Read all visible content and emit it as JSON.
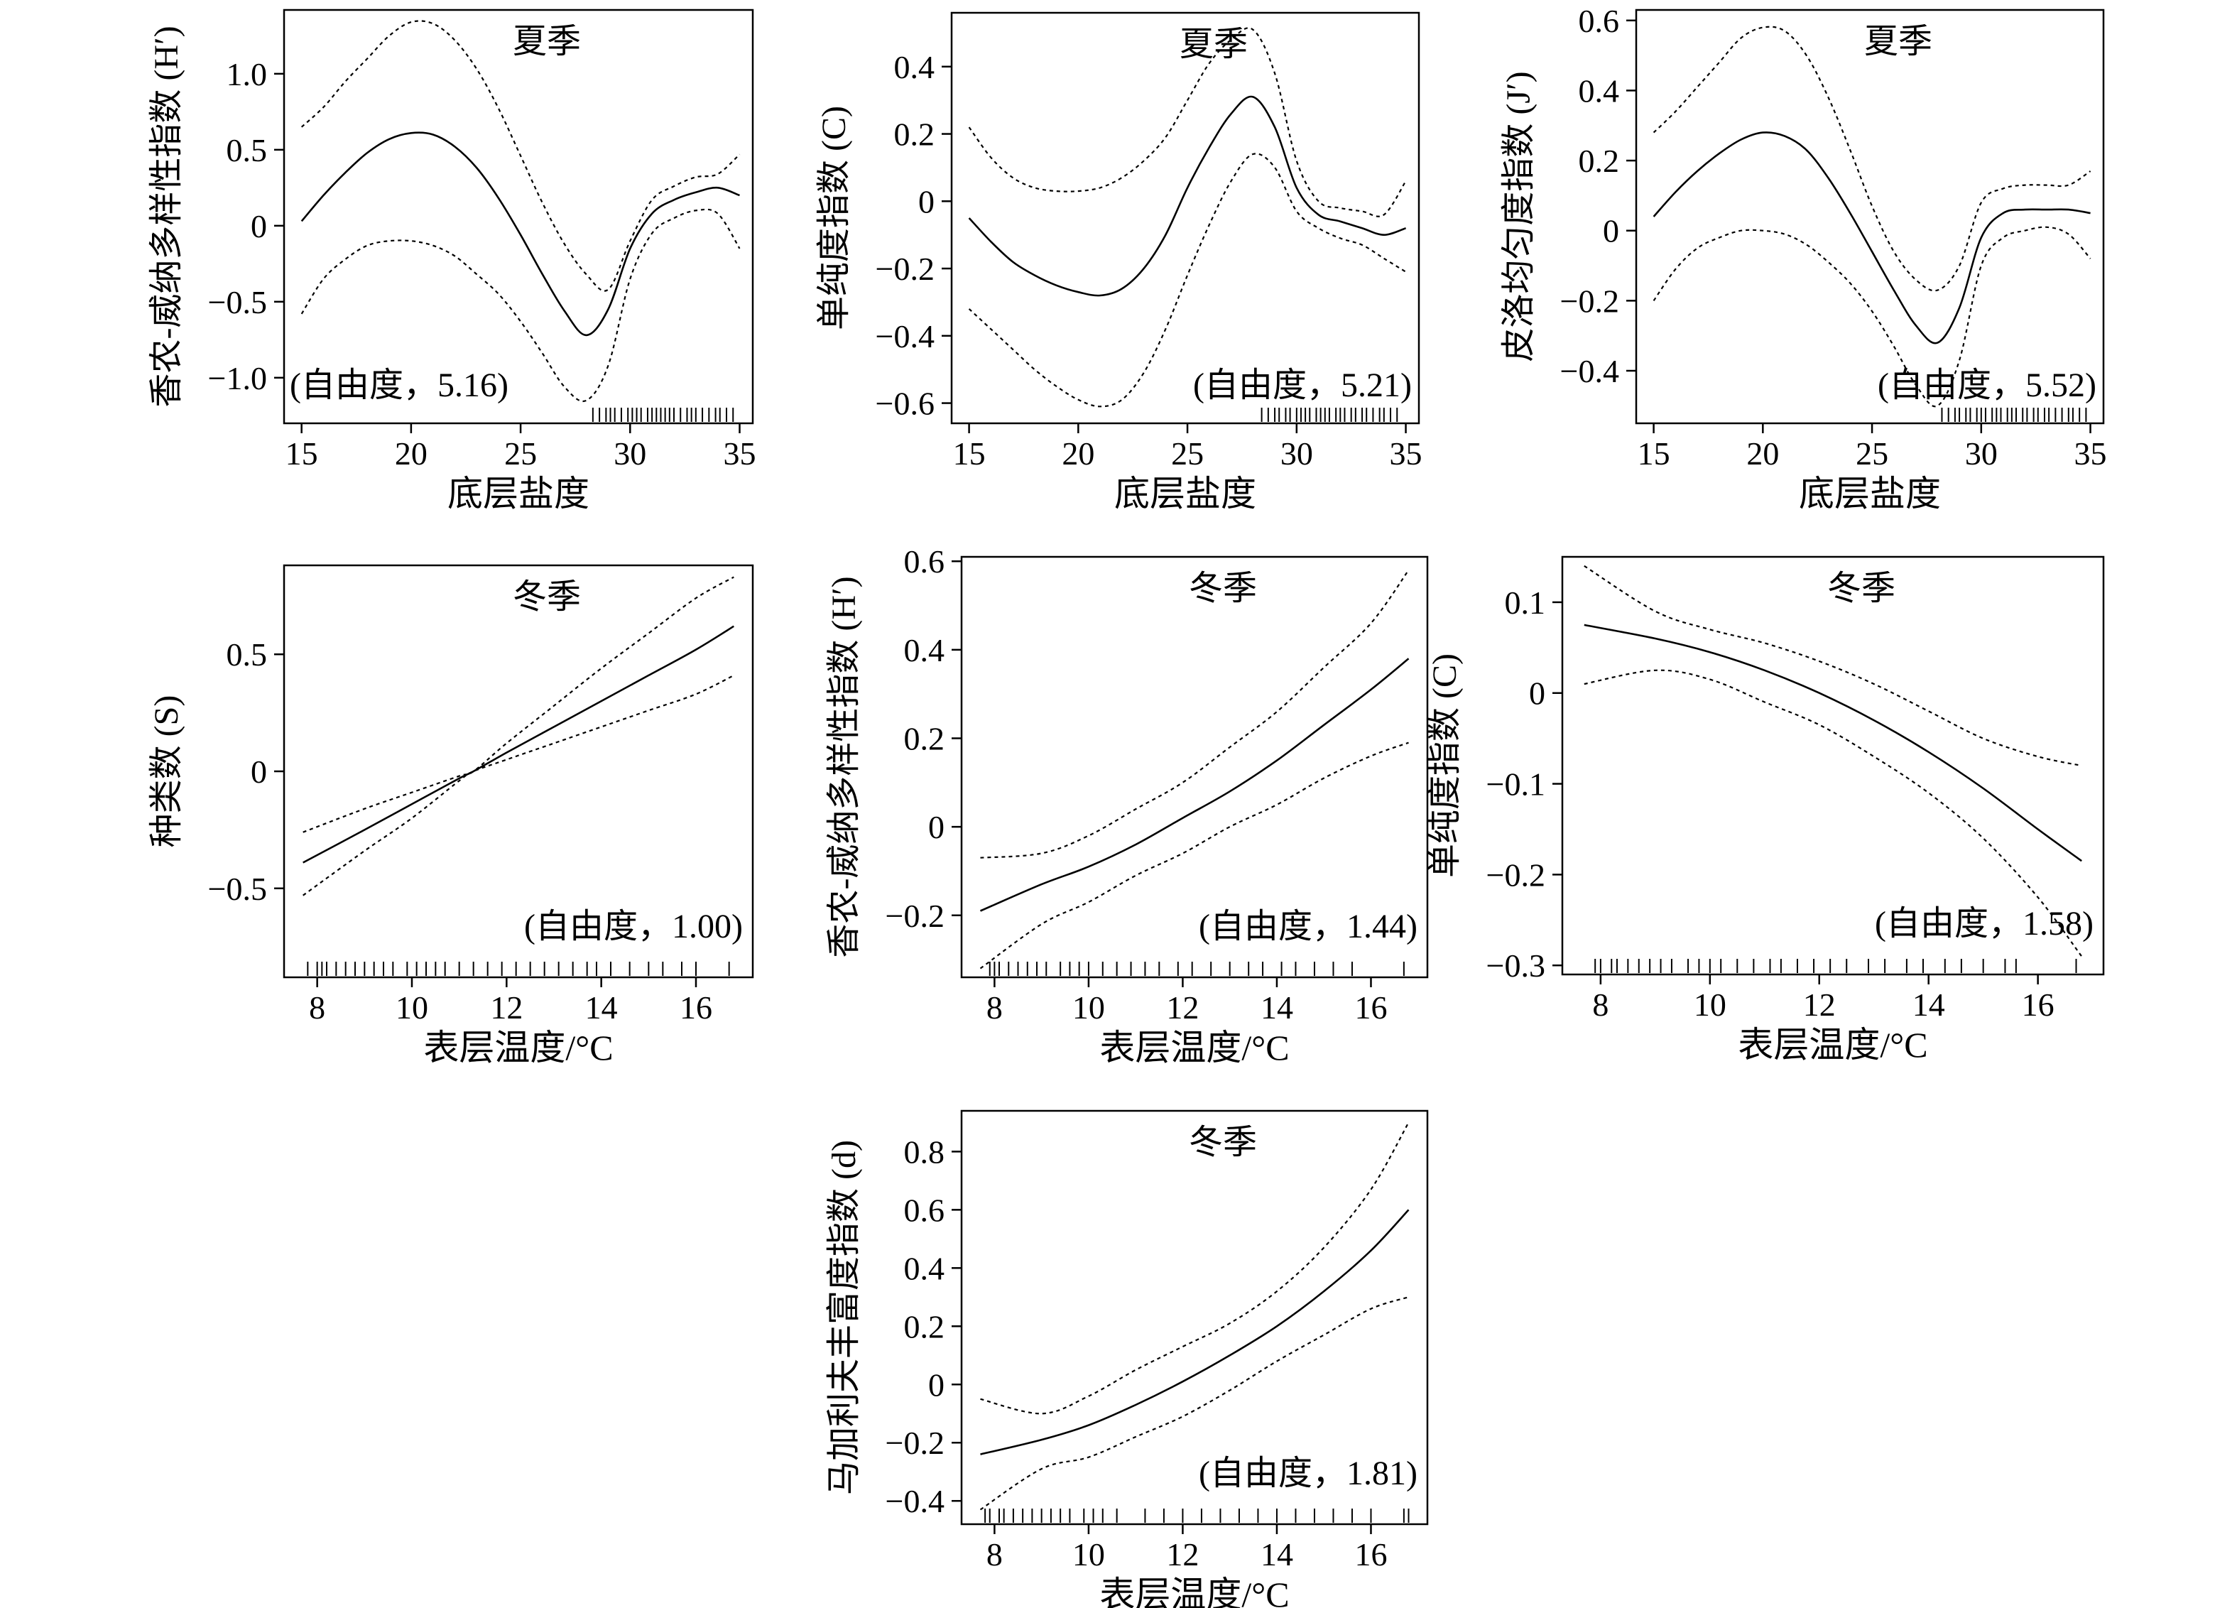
{
  "chart_data": [
    {
      "type": "line",
      "season": "夏季",
      "df_label": "(自由度，5.16)",
      "xlabel": "底层盐度",
      "ylabel": "香农-威纳多样性指数 (H′)",
      "xlim": [
        14.2,
        35.6
      ],
      "ylim": [
        -1.3,
        1.42
      ],
      "xticks": [
        15,
        20,
        25,
        30,
        35
      ],
      "yticks": [
        -1.0,
        -0.5,
        0,
        0.5,
        1.0
      ],
      "ytick_labels": [
        "−1.0",
        "−0.5",
        "0",
        "0.5",
        "1.0"
      ],
      "x": [
        15,
        16,
        17,
        18,
        19,
        20,
        21,
        22,
        23,
        24,
        25,
        26,
        27,
        28,
        29,
        30,
        31,
        32,
        33,
        34,
        35
      ],
      "fit": [
        0.03,
        0.2,
        0.35,
        0.48,
        0.57,
        0.61,
        0.6,
        0.52,
        0.38,
        0.18,
        -0.06,
        -0.32,
        -0.56,
        -0.72,
        -0.55,
        -0.15,
        0.08,
        0.17,
        0.22,
        0.25,
        0.2
      ],
      "upper": [
        0.65,
        0.78,
        0.95,
        1.1,
        1.25,
        1.34,
        1.33,
        1.22,
        1.03,
        0.77,
        0.46,
        0.15,
        -0.12,
        -0.32,
        -0.42,
        -0.1,
        0.17,
        0.26,
        0.32,
        0.34,
        0.47
      ],
      "lower": [
        -0.58,
        -0.35,
        -0.22,
        -0.13,
        -0.1,
        -0.1,
        -0.13,
        -0.2,
        -0.32,
        -0.45,
        -0.63,
        -0.84,
        -1.06,
        -1.15,
        -0.92,
        -0.35,
        -0.05,
        0.05,
        0.1,
        0.08,
        -0.15
      ],
      "rug": [
        28.3,
        28.6,
        28.9,
        29.1,
        29.3,
        29.6,
        29.9,
        30.1,
        30.3,
        30.5,
        30.8,
        31.0,
        31.2,
        31.4,
        31.6,
        31.8,
        32.0,
        32.3,
        32.6,
        32.8,
        33.0,
        33.3,
        33.6,
        33.9,
        34.1,
        34.4,
        34.7
      ]
    },
    {
      "type": "line",
      "season": "夏季",
      "df_label": "(自由度，5.21)",
      "xlabel": "底层盐度",
      "ylabel": "单纯度指数 (C)",
      "xlim": [
        14.2,
        35.6
      ],
      "ylim": [
        -0.66,
        0.56
      ],
      "xticks": [
        15,
        20,
        25,
        30,
        35
      ],
      "yticks": [
        -0.6,
        -0.4,
        -0.2,
        0,
        0.2,
        0.4
      ],
      "ytick_labels": [
        "−0.6",
        "−0.4",
        "−0.2",
        "0",
        "0.2",
        "0.4"
      ],
      "x": [
        15,
        16,
        17,
        18,
        19,
        20,
        21,
        22,
        23,
        24,
        25,
        26,
        27,
        28,
        29,
        30,
        31,
        32,
        33,
        34,
        35
      ],
      "fit": [
        -0.05,
        -0.12,
        -0.18,
        -0.22,
        -0.25,
        -0.27,
        -0.28,
        -0.26,
        -0.2,
        -0.1,
        0.04,
        0.16,
        0.26,
        0.31,
        0.22,
        0.04,
        -0.04,
        -0.06,
        -0.08,
        -0.1,
        -0.08
      ],
      "upper": [
        0.22,
        0.13,
        0.07,
        0.04,
        0.03,
        0.03,
        0.04,
        0.07,
        0.12,
        0.19,
        0.3,
        0.41,
        0.48,
        0.51,
        0.38,
        0.12,
        0.0,
        -0.02,
        -0.03,
        -0.04,
        0.06
      ],
      "lower": [
        -0.32,
        -0.38,
        -0.44,
        -0.5,
        -0.55,
        -0.59,
        -0.61,
        -0.59,
        -0.51,
        -0.38,
        -0.22,
        -0.07,
        0.06,
        0.14,
        0.1,
        -0.03,
        -0.08,
        -0.11,
        -0.13,
        -0.17,
        -0.21
      ],
      "rug": [
        28.4,
        28.7,
        29.0,
        29.2,
        29.5,
        29.7,
        30.0,
        30.2,
        30.4,
        30.6,
        30.9,
        31.1,
        31.3,
        31.5,
        31.8,
        32.0,
        32.2,
        32.5,
        32.7,
        33.0,
        33.2,
        33.5,
        33.8,
        34.0,
        34.3,
        34.6
      ]
    },
    {
      "type": "line",
      "season": "夏季",
      "df_label": "(自由度，5.52)",
      "xlabel": "底层盐度",
      "ylabel": "皮洛均匀度指数 (J′)",
      "xlim": [
        14.2,
        35.6
      ],
      "ylim": [
        -0.55,
        0.63
      ],
      "xticks": [
        15,
        20,
        25,
        30,
        35
      ],
      "yticks": [
        -0.4,
        -0.2,
        0,
        0.2,
        0.4,
        0.6
      ],
      "ytick_labels": [
        "−0.4",
        "−0.2",
        "0",
        "0.2",
        "0.4",
        "0.6"
      ],
      "x": [
        15,
        16,
        17,
        18,
        19,
        20,
        21,
        22,
        23,
        24,
        25,
        26,
        27,
        28,
        29,
        30,
        31,
        32,
        33,
        34,
        35
      ],
      "fit": [
        0.04,
        0.11,
        0.17,
        0.22,
        0.26,
        0.28,
        0.27,
        0.23,
        0.15,
        0.05,
        -0.06,
        -0.17,
        -0.27,
        -0.32,
        -0.22,
        -0.02,
        0.05,
        0.06,
        0.06,
        0.06,
        0.05
      ],
      "upper": [
        0.28,
        0.34,
        0.41,
        0.48,
        0.55,
        0.58,
        0.57,
        0.5,
        0.38,
        0.23,
        0.07,
        -0.06,
        -0.14,
        -0.17,
        -0.1,
        0.08,
        0.12,
        0.13,
        0.13,
        0.13,
        0.17
      ],
      "lower": [
        -0.2,
        -0.11,
        -0.05,
        -0.02,
        0.0,
        0.0,
        -0.01,
        -0.04,
        -0.09,
        -0.15,
        -0.23,
        -0.33,
        -0.44,
        -0.5,
        -0.37,
        -0.1,
        -0.02,
        0.0,
        0.01,
        -0.01,
        -0.08
      ],
      "rug": [
        28.2,
        28.5,
        28.8,
        29.0,
        29.3,
        29.5,
        29.8,
        30.0,
        30.2,
        30.5,
        30.7,
        30.9,
        31.2,
        31.4,
        31.6,
        31.9,
        32.1,
        32.4,
        32.6,
        32.9,
        33.1,
        33.4,
        33.7,
        34.0,
        34.2,
        34.5,
        34.8
      ]
    },
    {
      "type": "line",
      "season": "冬季",
      "df_label": "(自由度，1.00)",
      "xlabel": "表层温度/°C",
      "ylabel": "种类数 (S)",
      "xlim": [
        7.3,
        17.2
      ],
      "ylim": [
        -0.88,
        0.88
      ],
      "xticks": [
        8,
        10,
        12,
        14,
        16
      ],
      "yticks": [
        -0.5,
        0,
        0.5
      ],
      "ytick_labels": [
        "−0.5",
        "0",
        "0.5"
      ],
      "x": [
        7.7,
        9,
        10,
        11,
        11.3,
        12,
        13,
        14,
        15,
        16,
        16.8
      ],
      "fit": [
        -0.39,
        -0.25,
        -0.14,
        -0.03,
        0.0,
        0.08,
        0.19,
        0.3,
        0.41,
        0.52,
        0.62
      ],
      "upper": [
        -0.26,
        -0.16,
        -0.09,
        -0.02,
        0.0,
        0.12,
        0.28,
        0.44,
        0.59,
        0.74,
        0.83
      ],
      "lower": [
        -0.53,
        -0.34,
        -0.2,
        -0.04,
        0.0,
        0.05,
        0.12,
        0.19,
        0.26,
        0.33,
        0.41
      ],
      "rug": [
        7.8,
        8.0,
        8.1,
        8.2,
        8.4,
        8.6,
        8.8,
        9.0,
        9.2,
        9.4,
        9.6,
        9.9,
        10.1,
        10.3,
        10.5,
        10.7,
        11.0,
        11.3,
        11.6,
        11.9,
        12.2,
        12.5,
        12.8,
        13.1,
        13.4,
        13.7,
        13.9,
        14.2,
        14.6,
        15.0,
        15.3,
        15.7,
        16.0,
        16.7
      ]
    },
    {
      "type": "line",
      "season": "冬季",
      "df_label": "(自由度，1.44)",
      "xlabel": "表层温度/°C",
      "ylabel": "香农-威纳多样性指数 (H′)",
      "xlim": [
        7.3,
        17.2
      ],
      "ylim": [
        -0.34,
        0.61
      ],
      "xticks": [
        8,
        10,
        12,
        14,
        16
      ],
      "yticks": [
        -0.2,
        0,
        0.2,
        0.4,
        0.6
      ],
      "ytick_labels": [
        "−0.2",
        "0",
        "0.2",
        "0.4",
        "0.6"
      ],
      "x": [
        7.7,
        9,
        10,
        11,
        12,
        13,
        14,
        15,
        16,
        16.8
      ],
      "fit": [
        -0.19,
        -0.13,
        -0.09,
        -0.04,
        0.02,
        0.08,
        0.15,
        0.23,
        0.31,
        0.38
      ],
      "upper": [
        -0.07,
        -0.06,
        -0.02,
        0.04,
        0.1,
        0.18,
        0.26,
        0.36,
        0.46,
        0.58
      ],
      "lower": [
        -0.32,
        -0.22,
        -0.17,
        -0.11,
        -0.06,
        0.0,
        0.05,
        0.11,
        0.16,
        0.19
      ],
      "rug": [
        7.9,
        8.0,
        8.1,
        8.3,
        8.5,
        8.7,
        8.9,
        9.1,
        9.4,
        9.6,
        9.8,
        10.0,
        10.3,
        10.6,
        10.9,
        11.2,
        11.5,
        11.9,
        12.2,
        12.6,
        13.0,
        13.4,
        13.7,
        14.1,
        14.4,
        14.8,
        15.2,
        15.6,
        16.7
      ]
    },
    {
      "type": "line",
      "season": "冬季",
      "df_label": "(自由度，1.58)",
      "xlabel": "表层温度/°C",
      "ylabel": "单纯度指数 (C)",
      "xlim": [
        7.3,
        17.2
      ],
      "ylim": [
        -0.31,
        0.15
      ],
      "xticks": [
        8,
        10,
        12,
        14,
        16
      ],
      "yticks": [
        -0.3,
        -0.2,
        -0.1,
        0,
        0.1
      ],
      "ytick_labels": [
        "−0.3",
        "−0.2",
        "−0.1",
        "0",
        "0.1"
      ],
      "x": [
        7.7,
        9,
        10,
        11,
        12,
        13,
        14,
        15,
        16,
        16.8
      ],
      "fit": [
        0.075,
        0.06,
        0.045,
        0.025,
        0.0,
        -0.03,
        -0.065,
        -0.105,
        -0.15,
        -0.185
      ],
      "upper": [
        0.14,
        0.09,
        0.07,
        0.055,
        0.035,
        0.01,
        -0.02,
        -0.05,
        -0.07,
        -0.08
      ],
      "lower": [
        0.01,
        0.025,
        0.015,
        -0.01,
        -0.035,
        -0.07,
        -0.11,
        -0.16,
        -0.225,
        -0.29
      ],
      "rug": [
        7.9,
        8.0,
        8.2,
        8.3,
        8.5,
        8.7,
        8.9,
        9.1,
        9.3,
        9.6,
        9.8,
        10.0,
        10.2,
        10.5,
        10.8,
        11.1,
        11.3,
        11.6,
        11.9,
        12.2,
        12.5,
        12.9,
        13.2,
        13.6,
        13.9,
        14.3,
        14.6,
        15.0,
        15.4,
        15.6,
        16.7
      ]
    },
    {
      "type": "line",
      "season": "冬季",
      "df_label": "(自由度，1.81)",
      "xlabel": "表层温度/°C",
      "ylabel": "马加利夫丰富度指数 (d)",
      "xlim": [
        7.3,
        17.2
      ],
      "ylim": [
        -0.48,
        0.94
      ],
      "xticks": [
        8,
        10,
        12,
        14,
        16
      ],
      "yticks": [
        -0.4,
        -0.2,
        0,
        0.2,
        0.4,
        0.6,
        0.8
      ],
      "ytick_labels": [
        "−0.4",
        "−0.2",
        "0",
        "0.2",
        "0.4",
        "0.6",
        "0.8"
      ],
      "x": [
        7.7,
        9,
        10,
        11,
        12,
        13,
        14,
        15,
        16,
        16.8
      ],
      "fit": [
        -0.24,
        -0.19,
        -0.14,
        -0.07,
        0.01,
        0.1,
        0.2,
        0.32,
        0.46,
        0.6
      ],
      "upper": [
        -0.05,
        -0.1,
        -0.04,
        0.05,
        0.13,
        0.21,
        0.32,
        0.47,
        0.67,
        0.9
      ],
      "lower": [
        -0.43,
        -0.29,
        -0.25,
        -0.18,
        -0.11,
        -0.02,
        0.08,
        0.17,
        0.26,
        0.3
      ],
      "rug": [
        7.8,
        7.9,
        8.1,
        8.2,
        8.4,
        8.6,
        8.8,
        9.0,
        9.2,
        9.4,
        9.6,
        9.9,
        10.1,
        10.3,
        10.6,
        11.2,
        11.6,
        12.0,
        12.4,
        12.8,
        13.2,
        13.6,
        14.0,
        14.4,
        14.8,
        15.2,
        15.6,
        16.0,
        16.7,
        16.8
      ]
    }
  ]
}
